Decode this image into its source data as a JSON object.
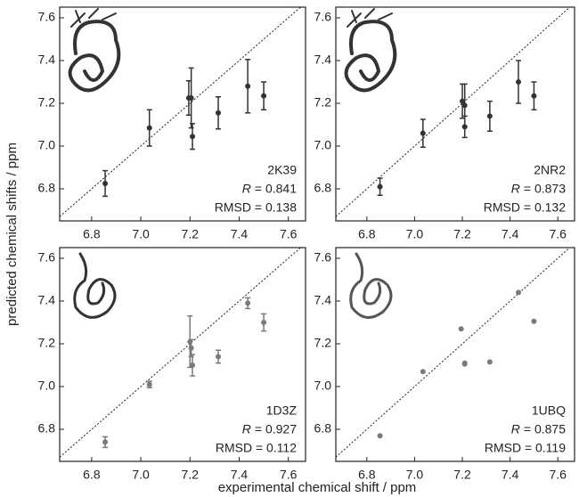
{
  "figure": {
    "xlabel": "experimental chemical shift / ppm",
    "ylabel": "predicted chemical shifts / ppm"
  },
  "chart_data": [
    {
      "type": "scatter",
      "label": "2K39",
      "r_symbol": "R",
      "r_text": "= 0.841",
      "rmsd_text": "RMSD = 0.138",
      "color": "#333333",
      "x": [
        6.855,
        7.035,
        7.195,
        7.205,
        7.21,
        7.315,
        7.435,
        7.5
      ],
      "y": [
        6.825,
        7.085,
        7.225,
        7.225,
        7.045,
        7.155,
        7.28,
        7.235
      ],
      "yerr": [
        0.06,
        0.085,
        0.08,
        0.14,
        0.06,
        0.075,
        0.125,
        0.065
      ],
      "xlim": [
        6.67,
        7.67
      ],
      "ylim": [
        6.65,
        7.65
      ],
      "xticks": [
        6.8,
        {
          "value": 7,
          "label": "7.0"
        },
        7.2,
        7.4,
        7.6
      ],
      "yticks": [
        6.8,
        {
          "value": 7,
          "label": "7.0"
        },
        7.2,
        7.4,
        7.6
      ]
    },
    {
      "type": "scatter",
      "label": "2NR2",
      "r_symbol": "R",
      "r_text": "= 0.873",
      "rmsd_text": "RMSD = 0.132",
      "color": "#333333",
      "x": [
        6.855,
        7.035,
        7.2,
        7.21,
        7.21,
        7.315,
        7.435,
        7.5
      ],
      "y": [
        6.81,
        7.06,
        7.21,
        7.19,
        7.09,
        7.14,
        7.3,
        7.235
      ],
      "yerr": [
        0.04,
        0.065,
        0.08,
        0.1,
        0.05,
        0.07,
        0.1,
        0.065
      ],
      "xlim": [
        6.67,
        7.67
      ],
      "ylim": [
        6.65,
        7.65
      ],
      "xticks": [
        6.8,
        {
          "value": 7,
          "label": "7.0"
        },
        7.2,
        7.4,
        7.6
      ],
      "yticks": [
        6.8,
        {
          "value": 7,
          "label": "7.0"
        },
        7.2,
        7.4,
        7.6
      ]
    },
    {
      "type": "scatter",
      "label": "1D3Z",
      "r_symbol": "R",
      "r_text": "= 0.927",
      "rmsd_text": "RMSD = 0.112",
      "color": "#7a7a7a",
      "x": [
        6.855,
        7.035,
        7.2,
        7.205,
        7.21,
        7.315,
        7.435,
        7.5
      ],
      "y": [
        6.74,
        7.01,
        7.21,
        7.18,
        7.1,
        7.14,
        7.39,
        7.3
      ],
      "yerr": [
        0.025,
        0.015,
        0.12,
        0.04,
        0.05,
        0.03,
        0.025,
        0.04
      ],
      "xlim": [
        6.67,
        7.67
      ],
      "ylim": [
        6.65,
        7.65
      ],
      "xticks": [
        6.8,
        {
          "value": 7,
          "label": "7.0"
        },
        7.2,
        7.4,
        7.6
      ],
      "yticks": [
        6.8,
        {
          "value": 7,
          "label": "7.0"
        },
        7.2,
        7.4,
        7.6
      ]
    },
    {
      "type": "scatter",
      "label": "1UBQ",
      "r_symbol": "R",
      "r_text": "= 0.875",
      "rmsd_text": "RMSD = 0.119",
      "color": "#7a7a7a",
      "x": [
        6.855,
        7.035,
        7.195,
        7.21,
        7.21,
        7.315,
        7.435,
        7.5
      ],
      "y": [
        6.77,
        7.07,
        7.27,
        7.11,
        7.105,
        7.115,
        7.44,
        7.305
      ],
      "xlim": [
        6.67,
        7.67
      ],
      "ylim": [
        6.65,
        7.65
      ],
      "xticks": [
        6.8,
        {
          "value": 7,
          "label": "7.0"
        },
        7.2,
        7.4,
        7.6
      ],
      "yticks": [
        6.8,
        {
          "value": 7,
          "label": "7.0"
        },
        7.2,
        7.4,
        7.6
      ]
    }
  ]
}
